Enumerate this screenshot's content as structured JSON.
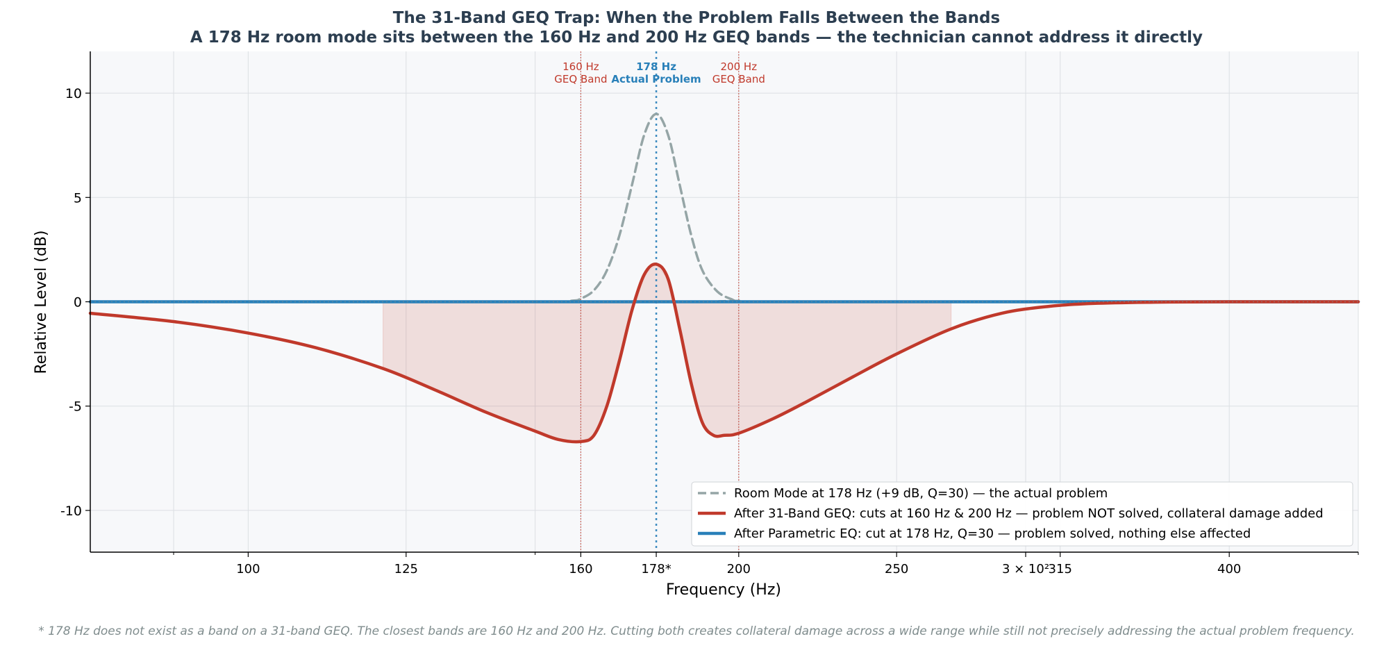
{
  "chart_data": {
    "type": "line",
    "title": "The 31-Band GEQ Trap: When the Problem Falls Between the Bands",
    "subtitle": "A 178 Hz room mode sits between the 160 Hz and 200 Hz GEQ bands — the technician cannot address it directly",
    "xlabel": "Frequency (Hz)",
    "ylabel": "Relative Level (dB)",
    "x_scale": "log",
    "xlim": [
      80,
      480
    ],
    "ylim": [
      -12,
      12
    ],
    "grid": true,
    "x_ticks": [
      {
        "value": 100,
        "label": "100"
      },
      {
        "value": 125,
        "label": "125"
      },
      {
        "value": 160,
        "label": "160"
      },
      {
        "value": 178,
        "label": "178*"
      },
      {
        "value": 200,
        "label": "200"
      },
      {
        "value": 250,
        "label": "250"
      },
      {
        "value": 300,
        "label": "3 × 10²"
      },
      {
        "value": 315,
        "label": "315"
      },
      {
        "value": 400,
        "label": "400"
      }
    ],
    "y_ticks": [
      {
        "value": 10,
        "label": "10"
      },
      {
        "value": 5,
        "label": "5"
      },
      {
        "value": 0,
        "label": "0"
      },
      {
        "value": -5,
        "label": "-5"
      },
      {
        "value": -10,
        "label": "-10"
      }
    ],
    "reference_lines": [
      {
        "x": 160,
        "label_top": "160 Hz",
        "label_bottom": "GEQ Band",
        "color": "#c0392b"
      },
      {
        "x": 178,
        "label_top": "178 Hz",
        "label_bottom": "Actual Problem",
        "color": "#2980b9"
      },
      {
        "x": 200,
        "label_top": "200 Hz",
        "label_bottom": "GEQ Band",
        "color": "#c0392b"
      }
    ],
    "shaded_region": {
      "x_range": [
        121,
        270
      ],
      "between": "After 31-Band GEQ and 0 dB",
      "color": "#c0392b"
    },
    "series": [
      {
        "name": "Room Mode at 178 Hz (+9 dB, Q=30) — the actual problem",
        "color": "#95a5a6",
        "style": "dashed",
        "x": [
          80,
          150,
          158,
          160,
          163,
          166,
          169,
          172,
          175,
          178,
          181,
          184,
          187,
          190,
          194,
          198,
          200,
          210,
          480
        ],
        "y": [
          0,
          0,
          0.05,
          0.15,
          0.55,
          1.5,
          3.2,
          5.6,
          8.0,
          9.0,
          8.0,
          5.6,
          3.2,
          1.5,
          0.5,
          0.12,
          0.05,
          0,
          0
        ]
      },
      {
        "name": "After 31-Band GEQ: cuts at 160 Hz & 200 Hz — problem NOT solved, collateral damage added",
        "color": "#c0392b",
        "style": "solid",
        "x": [
          80,
          90,
          100,
          110,
          121,
          130,
          140,
          150,
          155,
          160,
          163,
          166,
          169,
          172,
          175,
          178,
          181,
          184,
          187,
          190,
          193,
          196,
          200,
          210,
          220,
          235,
          250,
          270,
          290,
          310,
          330,
          360,
          400,
          480
        ],
        "y": [
          -0.55,
          -0.95,
          -1.5,
          -2.2,
          -3.2,
          -4.2,
          -5.3,
          -6.2,
          -6.6,
          -6.7,
          -6.4,
          -5.0,
          -2.8,
          -0.4,
          1.3,
          1.8,
          1.1,
          -1.3,
          -3.9,
          -5.8,
          -6.4,
          -6.4,
          -6.3,
          -5.6,
          -4.8,
          -3.6,
          -2.5,
          -1.3,
          -0.55,
          -0.22,
          -0.08,
          -0.02,
          0,
          0
        ]
      },
      {
        "name": "After Parametric EQ: cut at 178 Hz, Q=30 — problem solved, nothing else affected",
        "color": "#2980b9",
        "style": "solid",
        "x": [
          80,
          480
        ],
        "y": [
          0,
          0
        ]
      }
    ],
    "legend": {
      "position": "lower right"
    },
    "footnote": "* 178 Hz does not exist as a band on a 31-band GEQ. The closest bands are 160 Hz and 200 Hz. Cutting both creates collateral damage across a wide range while still not precisely addressing the actual problem frequency."
  }
}
